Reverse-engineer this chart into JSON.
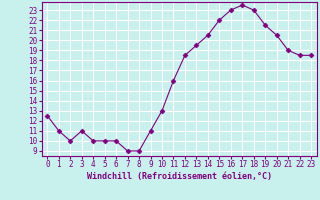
{
  "hours": [
    0,
    1,
    2,
    3,
    4,
    5,
    6,
    7,
    8,
    9,
    10,
    11,
    12,
    13,
    14,
    15,
    16,
    17,
    18,
    19,
    20,
    21,
    22,
    23
  ],
  "windchill": [
    12.5,
    11.0,
    10.0,
    11.0,
    10.0,
    10.0,
    10.0,
    9.0,
    9.0,
    11.0,
    13.0,
    16.0,
    18.5,
    19.5,
    20.5,
    22.0,
    23.0,
    23.5,
    23.0,
    21.5,
    20.5,
    19.0,
    18.5,
    18.5
  ],
  "line_color": "#800080",
  "marker": "D",
  "marker_size": 2.5,
  "bg_color": "#c8f0ec",
  "grid_color": "#ffffff",
  "axis_label_color": "#800080",
  "tick_color": "#800080",
  "xlabel": "Windchill (Refroidissement éolien,°C)",
  "ylim_min": 8.5,
  "ylim_max": 23.8,
  "yticks": [
    9,
    10,
    11,
    12,
    13,
    14,
    15,
    16,
    17,
    18,
    19,
    20,
    21,
    22,
    23
  ],
  "xlim_min": -0.5,
  "xlim_max": 23.5,
  "spine_color": "#800080",
  "tick_fontsize": 5.5,
  "xlabel_fontsize": 6.0
}
